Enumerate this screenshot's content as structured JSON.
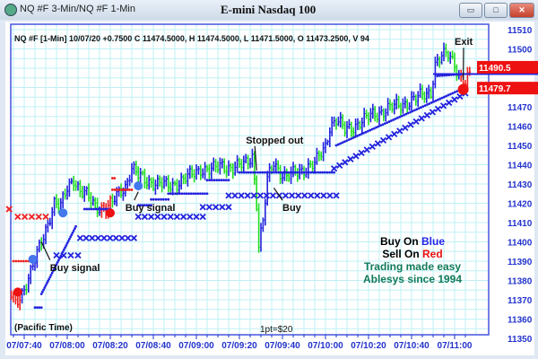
{
  "window": {
    "app_title": "NQ #F 3-Min/NQ #F 1-Min",
    "chart_title": "E-mini Nasdaq 100",
    "minimize": "▭",
    "maximize": "□",
    "close": "✕"
  },
  "colors": {
    "up_bar": "#2222dd",
    "down_bar": "#22dd22",
    "sell_bar": "#ee2222",
    "grid": "#bff0f5",
    "axis": "#2233cc",
    "legend_green": "#127a5a",
    "price_tag": "#ee1111"
  },
  "chart_data": {
    "type": "ohlc-bar",
    "title": "E-mini Nasdaq 100",
    "info_line": "NQ #F [1-Min] 10/07/20  +0.7500 C 11474.5000, H 11474.5000, L 11471.5000, O 11473.2500, V 94",
    "ylim": [
      11350,
      11510
    ],
    "yticks": [
      11350,
      11360,
      11370,
      11380,
      11390,
      11400,
      11410,
      11420,
      11430,
      11440,
      11450,
      11460,
      11470,
      11480,
      11490,
      11500,
      11510
    ],
    "xticks": [
      "07/07:40",
      "07/08:00",
      "07/08:20",
      "07/08:40",
      "07/09:00",
      "07/09:20",
      "07/09:40",
      "07/10:00",
      "07/10:20",
      "07/10:40",
      "07/11:00"
    ],
    "xtick_minutes": [
      460,
      480,
      500,
      520,
      540,
      560,
      580,
      600,
      620,
      640,
      660
    ],
    "price_path": [
      [
        454,
        11372
      ],
      [
        456,
        11368
      ],
      [
        458,
        11372
      ],
      [
        460,
        11376
      ],
      [
        463,
        11384
      ],
      [
        465,
        11390
      ],
      [
        468,
        11400
      ],
      [
        471,
        11410
      ],
      [
        474,
        11420
      ],
      [
        477,
        11418
      ],
      [
        480,
        11428
      ],
      [
        483,
        11433
      ],
      [
        486,
        11426
      ],
      [
        489,
        11424
      ],
      [
        492,
        11420
      ],
      [
        495,
        11418
      ],
      [
        498,
        11417
      ],
      [
        501,
        11420
      ],
      [
        504,
        11426
      ],
      [
        507,
        11429
      ],
      [
        510,
        11438
      ],
      [
        513,
        11434
      ],
      [
        517,
        11432
      ],
      [
        522,
        11430
      ],
      [
        527,
        11429
      ],
      [
        532,
        11431
      ],
      [
        537,
        11434
      ],
      [
        542,
        11438
      ],
      [
        547,
        11437
      ],
      [
        552,
        11440
      ],
      [
        557,
        11438
      ],
      [
        562,
        11440
      ],
      [
        566,
        11445
      ],
      [
        568,
        11420
      ],
      [
        569,
        11398
      ],
      [
        571,
        11410
      ],
      [
        573,
        11432
      ],
      [
        576,
        11442
      ],
      [
        579,
        11436
      ],
      [
        582,
        11433
      ],
      [
        586,
        11436
      ],
      [
        590,
        11438
      ],
      [
        595,
        11440
      ],
      [
        600,
        11450
      ],
      [
        602,
        11460
      ],
      [
        605,
        11463
      ],
      [
        609,
        11458
      ],
      [
        613,
        11460
      ],
      [
        618,
        11463
      ],
      [
        622,
        11466
      ],
      [
        627,
        11468
      ],
      [
        632,
        11470
      ],
      [
        637,
        11472
      ],
      [
        642,
        11474
      ],
      [
        645,
        11476
      ],
      [
        649,
        11478
      ],
      [
        651,
        11492
      ],
      [
        654,
        11496
      ],
      [
        657,
        11497
      ],
      [
        660,
        11493
      ],
      [
        662,
        11486
      ],
      [
        664,
        11484
      ],
      [
        665,
        11482
      ],
      [
        667,
        11486
      ]
    ],
    "sell_segments": [
      [
        454,
        458
      ],
      [
        496,
        500
      ],
      [
        663,
        667
      ]
    ],
    "stop_lines": [
      {
        "kind": "dots",
        "color": "#ee2222",
        "from": [
          455,
          11390
        ],
        "to": [
          462,
          11390
        ]
      },
      {
        "kind": "x",
        "color": "#ee2222",
        "from": [
          453,
          11417
        ],
        "to": [
          453,
          11417
        ]
      },
      {
        "kind": "x",
        "color": "#ee2222",
        "from": [
          457,
          11413
        ],
        "to": [
          470,
          11413
        ]
      },
      {
        "kind": "dots",
        "color": "#2222dd",
        "from": [
          465,
          11366
        ],
        "to": [
          468,
          11366
        ]
      },
      {
        "kind": "dots",
        "color": "#2222dd",
        "from": [
          468,
          11373
        ],
        "to": [
          484,
          11408
        ]
      },
      {
        "kind": "x",
        "color": "#2222dd",
        "from": [
          475,
          11393
        ],
        "to": [
          485,
          11393
        ]
      },
      {
        "kind": "dots",
        "color": "#2222dd",
        "from": [
          488,
          11417
        ],
        "to": [
          500,
          11417
        ]
      },
      {
        "kind": "x",
        "color": "#2222dd",
        "from": [
          486,
          11402
        ],
        "to": [
          511,
          11402
        ]
      },
      {
        "kind": "dots",
        "color": "#ee2222",
        "from": [
          501,
          11427
        ],
        "to": [
          510,
          11427
        ]
      },
      {
        "kind": "dots",
        "color": "#ee2222",
        "from": [
          501,
          11433
        ],
        "to": [
          502,
          11433
        ]
      },
      {
        "kind": "dots",
        "color": "#2222dd",
        "from": [
          513,
          11419
        ],
        "to": [
          519,
          11419
        ]
      },
      {
        "kind": "dots",
        "color": "#2222dd",
        "from": [
          519,
          11422
        ],
        "to": [
          527,
          11422
        ]
      },
      {
        "kind": "dots",
        "color": "#2222dd",
        "from": [
          527,
          11425
        ],
        "to": [
          545,
          11425
        ]
      },
      {
        "kind": "dots",
        "color": "#2222dd",
        "from": [
          545,
          11432
        ],
        "to": [
          555,
          11432
        ]
      },
      {
        "kind": "x",
        "color": "#2222dd",
        "from": [
          513,
          11413
        ],
        "to": [
          543,
          11413
        ]
      },
      {
        "kind": "x",
        "color": "#2222dd",
        "from": [
          543,
          11418
        ],
        "to": [
          555,
          11418
        ]
      },
      {
        "kind": "x",
        "color": "#2222dd",
        "from": [
          555,
          11424
        ],
        "to": [
          605,
          11424
        ]
      },
      {
        "kind": "dots",
        "color": "#2222dd",
        "from": [
          560,
          11436
        ],
        "to": [
          604,
          11436
        ]
      },
      {
        "kind": "x",
        "color": "#2222dd",
        "from": [
          604,
          11438
        ],
        "to": [
          665,
          11477
        ]
      },
      {
        "kind": "dots",
        "color": "#2222dd",
        "from": [
          605,
          11450
        ],
        "to": [
          665,
          11480
        ]
      },
      {
        "kind": "dots",
        "color": "#2222dd",
        "from": [
          652,
          11486
        ],
        "to": [
          664,
          11487
        ]
      }
    ],
    "signals": [
      {
        "type": "buy",
        "color": "#4477ee",
        "at": [
          464,
          11391
        ]
      },
      {
        "type": "buy",
        "color": "#4477ee",
        "at": [
          478,
          11415
        ]
      },
      {
        "type": "buy",
        "color": "#4477ee",
        "at": [
          513,
          11429
        ]
      },
      {
        "type": "sell",
        "color": "#ee1111",
        "at": [
          457,
          11374
        ]
      },
      {
        "type": "sell",
        "color": "#ee1111",
        "at": [
          500,
          11415
        ]
      },
      {
        "type": "sell",
        "color": "#ee1111",
        "at": [
          664,
          11479
        ]
      }
    ],
    "annotations": [
      {
        "text": "Buy signal",
        "at": [
          472,
          11385
        ],
        "arrow_to": [
          468,
          11400
        ]
      },
      {
        "text": "Buy signal",
        "at": [
          507,
          11416
        ],
        "arrow_to": [
          513,
          11426
        ]
      },
      {
        "text": "Stopped out",
        "at": [
          563,
          11451
        ],
        "arrow_to": [
          568,
          11437
        ]
      },
      {
        "text": "Buy",
        "at": [
          580,
          11416
        ],
        "arrow_to": [
          576,
          11428
        ]
      },
      {
        "text": "Exit",
        "at": [
          660,
          11502
        ],
        "arrow_to": [
          664,
          11484
        ]
      }
    ],
    "price_tags": [
      {
        "label": "11490.5",
        "value": 11490.5,
        "color": "#ee1111"
      },
      {
        "label": "11479.7",
        "value": 11479.7,
        "color": "#ee1111"
      }
    ],
    "current_line": {
      "value": 11487,
      "color": "#2222dd"
    },
    "footer_left": "(Pacific Time)",
    "footer_center": "1pt=$20"
  },
  "legend": {
    "buy_prefix": "Buy On ",
    "buy_word": "Blue",
    "sell_prefix": "Sell On ",
    "sell_word": "Red",
    "line3": "Trading made easy",
    "line4": "Ablesys since 1994"
  }
}
